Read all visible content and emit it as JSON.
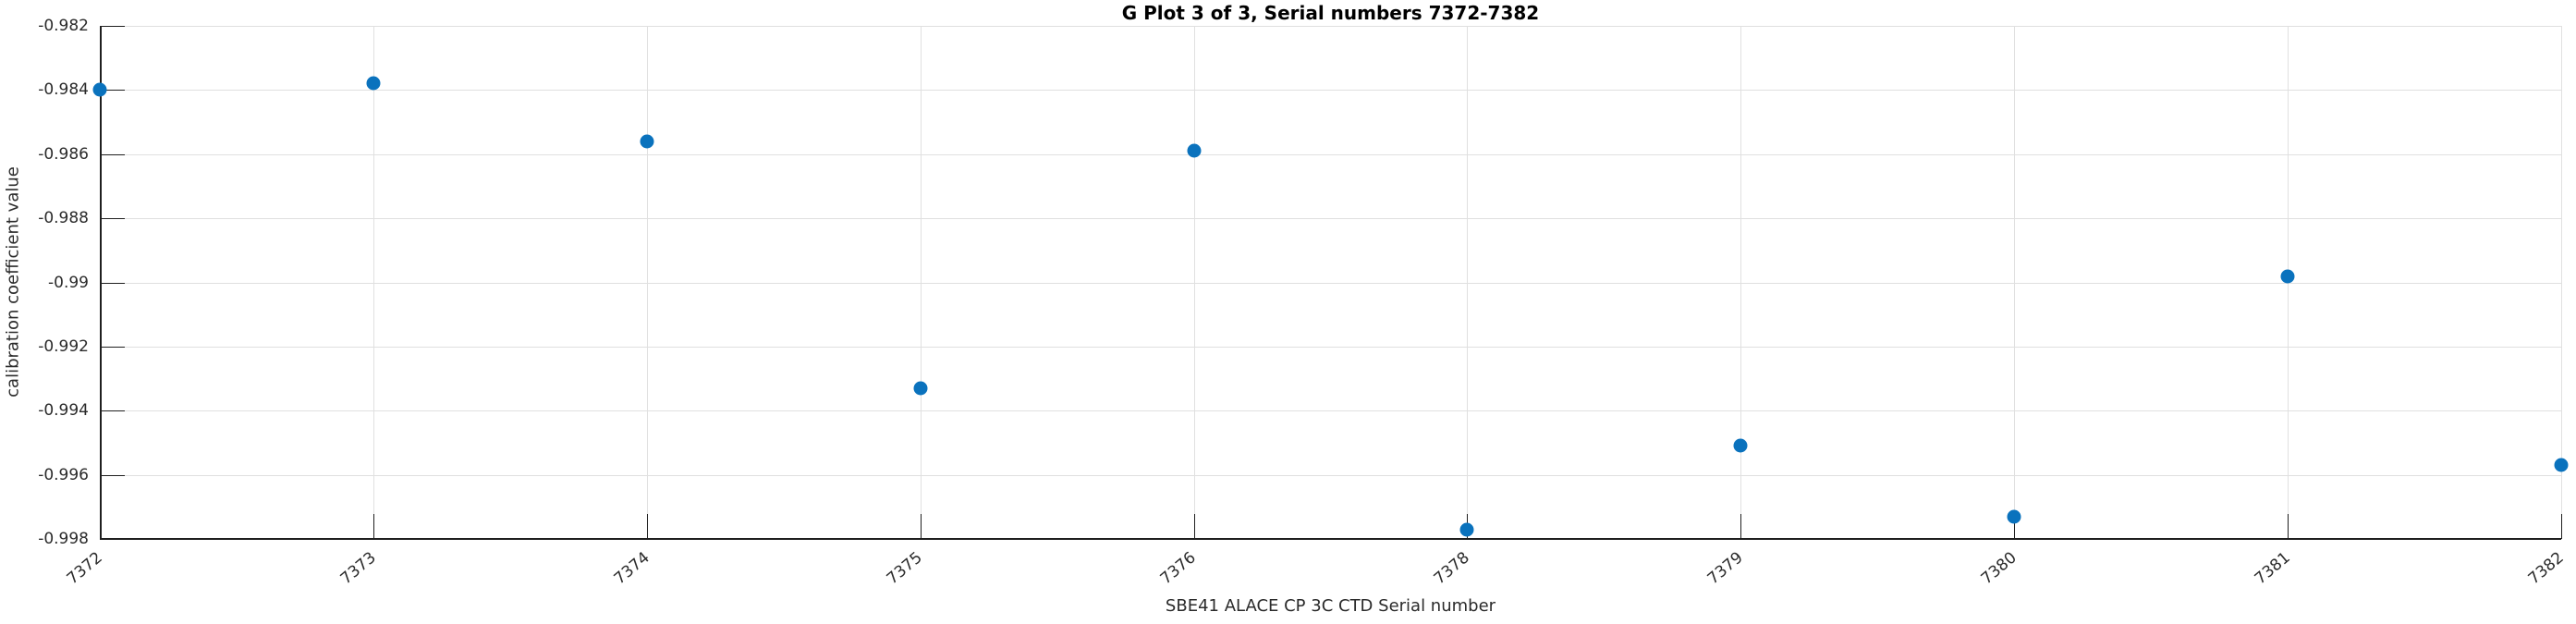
{
  "chart_data": {
    "type": "scatter",
    "title": "G Plot 3 of 3, Serial numbers 7372-7382",
    "xlabel": "SBE41 ALACE CP 3C CTD Serial number",
    "ylabel": "calibration coefficient value",
    "categories": [
      "7372",
      "7373",
      "7374",
      "7375",
      "7376",
      "7378",
      "7379",
      "7380",
      "7381",
      "7382"
    ],
    "values": [
      -0.984,
      -0.9838,
      -0.9856,
      -0.9933,
      -0.9859,
      -0.9977,
      -0.9951,
      -0.9973,
      -0.9898,
      -0.9957
    ],
    "ytick_labels": [
      "-0.982",
      "-0.984",
      "-0.986",
      "-0.988",
      "-0.99",
      "-0.992",
      "-0.994",
      "-0.996",
      "-0.998"
    ],
    "ytick_values": [
      -0.982,
      -0.984,
      -0.986,
      -0.988,
      -0.99,
      -0.992,
      -0.994,
      -0.996,
      -0.998
    ],
    "ylim": [
      -0.998,
      -0.982
    ],
    "grid": true,
    "legend": null,
    "marker": "filled-circle",
    "xtick_rotation_deg": 40
  },
  "colors": {
    "marker": "#0a72bd",
    "grid": "#e0e0e0",
    "axis": "#1f1f1f",
    "text": "#2b2b2b"
  }
}
